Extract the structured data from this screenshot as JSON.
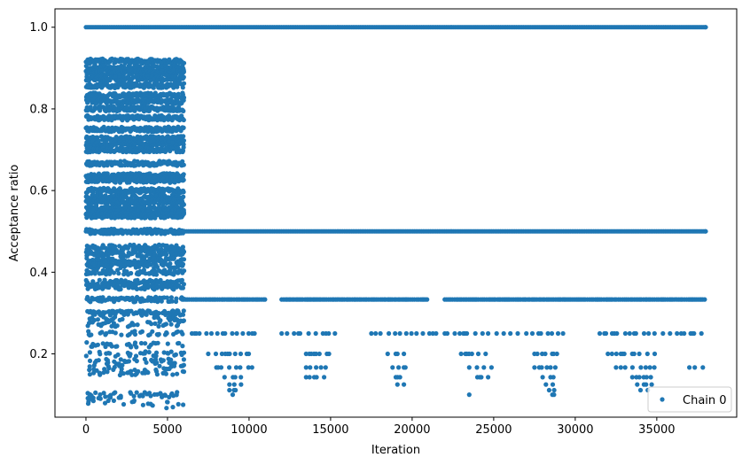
{
  "chart_data": {
    "type": "scatter",
    "title": "",
    "xlabel": "Iteration",
    "ylabel": "Acceptance ratio",
    "xlim": [
      -1900,
      39900
    ],
    "ylim": [
      0.045,
      1.045
    ],
    "xticks": [
      0,
      5000,
      10000,
      15000,
      20000,
      25000,
      30000,
      35000
    ],
    "xtick_labels": [
      "0",
      "5000",
      "10000",
      "15000",
      "20000",
      "25000",
      "30000",
      "35000"
    ],
    "yticks": [
      0.2,
      0.4,
      0.6,
      0.8,
      1.0
    ],
    "ytick_labels": [
      "0.2",
      "0.4",
      "0.6",
      "0.8",
      "1.0"
    ],
    "grid": false,
    "legend": {
      "position": "lower-right",
      "entries": [
        "Chain 0"
      ]
    },
    "series": [
      {
        "name": "Chain 0",
        "color": "#1f77b4",
        "marker": "circle",
        "band_description_note": "",
        "iterations_max": 38000,
        "levels_full_range": [
          1.0,
          0.5
        ],
        "levels_late_sparse": [
          {
            "y": 0.3333,
            "x_ranges": [
              [
                6000,
                11000
              ],
              [
                12000,
                21000
              ],
              [
                22000,
                38000
              ]
            ]
          },
          {
            "y": 0.25,
            "x_ranges": [
              [
                6500,
                10500
              ],
              [
                12000,
                15500
              ],
              [
                17500,
                21500
              ],
              [
                22000,
                29500
              ],
              [
                31500,
                38000
              ]
            ]
          },
          {
            "y": 0.2,
            "x_ranges": [
              [
                7500,
                10000
              ],
              [
                13500,
                15000
              ],
              [
                18500,
                19700
              ],
              [
                23000,
                24800
              ],
              [
                27500,
                29000
              ],
              [
                32000,
                35000
              ]
            ]
          },
          {
            "y": 0.1667,
            "x_ranges": [
              [
                8000,
                10200
              ],
              [
                13500,
                14800
              ],
              [
                18800,
                19800
              ],
              [
                23500,
                25000
              ],
              [
                27500,
                29000
              ],
              [
                32500,
                35000
              ],
              [
                37000,
                38000
              ]
            ]
          },
          {
            "y": 0.1429,
            "x_ranges": [
              [
                8500,
                9800
              ],
              [
                13500,
                14800
              ],
              [
                19000,
                19700
              ],
              [
                24000,
                24800
              ],
              [
                28000,
                29000
              ],
              [
                33500,
                35000
              ]
            ]
          },
          {
            "y": 0.125,
            "x_ranges": [
              [
                8800,
                9600
              ],
              [
                19100,
                19600
              ],
              [
                28200,
                28800
              ],
              [
                33800,
                34800
              ]
            ]
          },
          {
            "y": 0.1111,
            "x_ranges": [
              [
                8800,
                9500
              ],
              [
                28400,
                28800
              ],
              [
                34000,
                34700
              ]
            ]
          },
          {
            "y": 0.1,
            "x_ranges": [
              [
                9000,
                9400
              ],
              [
                23500,
                23700
              ],
              [
                28600,
                28800
              ]
            ]
          }
        ],
        "early_phase": {
          "x_range": [
            0,
            6000
          ],
          "dense_levels": [
            0.9167,
            0.9,
            0.8889,
            0.875,
            0.8571,
            0.8333,
            0.8182,
            0.8,
            0.7778,
            0.75,
            0.7273,
            0.7143,
            0.7,
            0.6667,
            0.6364,
            0.625,
            0.6,
            0.5833,
            0.5714,
            0.5556,
            0.5455,
            0.5385,
            0.5,
            0.4615,
            0.4545,
            0.4444,
            0.4286,
            0.4167,
            0.4,
            0.375,
            0.3636,
            0.3333,
            0.3,
            0.2857,
            0.2727,
            0.25,
            0.2222,
            0.2,
            0.1818,
            0.1667,
            0.1538,
            0.1
          ],
          "sparse_low_values": [
            0.0833,
            0.0769,
            0.0909
          ]
        }
      }
    ]
  }
}
